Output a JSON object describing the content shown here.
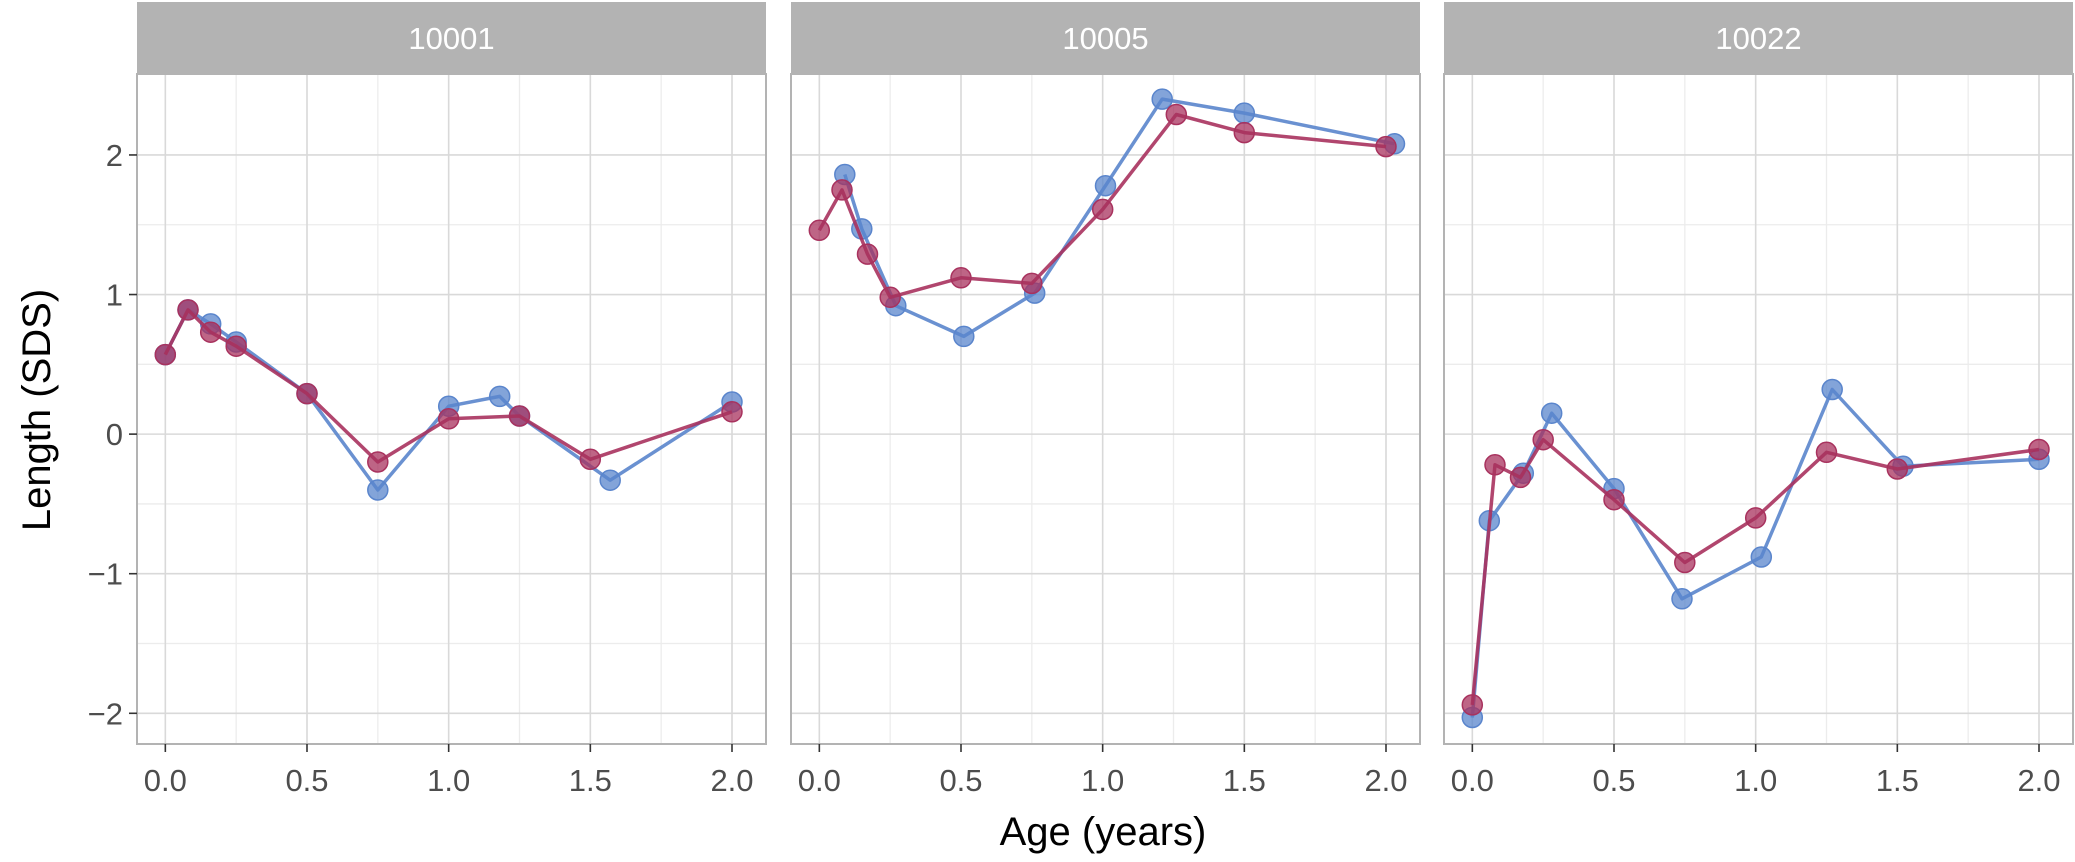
{
  "chart_data": {
    "type": "line",
    "xlabel": "Age (years)",
    "ylabel": "Length (SDS)",
    "xlim": [
      -0.1,
      2.12
    ],
    "ylim": [
      -2.22,
      2.58
    ],
    "x_ticks": [
      0.0,
      0.5,
      1.0,
      1.5,
      2.0
    ],
    "x_tick_labels": [
      "0.0",
      "0.5",
      "1.0",
      "1.5",
      "2.0"
    ],
    "y_ticks": [
      -2,
      -1,
      0,
      1,
      2
    ],
    "y_tick_labels": [
      "−2",
      "−1",
      "0",
      "1",
      "2"
    ],
    "grid": true,
    "colors": {
      "series_a": "#5a85cc",
      "series_b": "#a8325e",
      "strip": "#b3b3b3",
      "grid": "#d9d9d9",
      "panel_border": "#b3b3b3"
    },
    "panels": [
      {
        "title": "10001",
        "series": [
          {
            "color": "#5a85cc",
            "points": [
              [
                0.0,
                0.57
              ],
              [
                0.08,
                0.89
              ],
              [
                0.16,
                0.79
              ],
              [
                0.25,
                0.66
              ],
              [
                0.5,
                0.29
              ],
              [
                0.75,
                -0.4
              ],
              [
                1.0,
                0.2
              ],
              [
                1.18,
                0.27
              ],
              [
                1.25,
                0.13
              ],
              [
                1.57,
                -0.33
              ],
              [
                2.0,
                0.23
              ]
            ]
          },
          {
            "color": "#a8325e",
            "points": [
              [
                0.0,
                0.57
              ],
              [
                0.08,
                0.89
              ],
              [
                0.16,
                0.73
              ],
              [
                0.25,
                0.63
              ],
              [
                0.5,
                0.29
              ],
              [
                0.75,
                -0.2
              ],
              [
                1.0,
                0.11
              ],
              [
                1.25,
                0.13
              ],
              [
                1.5,
                -0.18
              ],
              [
                2.0,
                0.16
              ]
            ]
          }
        ]
      },
      {
        "title": "10005",
        "series": [
          {
            "color": "#5a85cc",
            "points": [
              [
                0.09,
                1.86
              ],
              [
                0.15,
                1.47
              ],
              [
                0.27,
                0.92
              ],
              [
                0.51,
                0.7
              ],
              [
                0.76,
                1.01
              ],
              [
                1.01,
                1.78
              ],
              [
                1.21,
                2.4
              ],
              [
                1.5,
                2.3
              ],
              [
                2.03,
                2.08
              ]
            ]
          },
          {
            "color": "#a8325e",
            "points": [
              [
                0.0,
                1.46
              ],
              [
                0.08,
                1.75
              ],
              [
                0.17,
                1.29
              ],
              [
                0.25,
                0.98
              ],
              [
                0.5,
                1.12
              ],
              [
                0.75,
                1.08
              ],
              [
                1.0,
                1.61
              ],
              [
                1.26,
                2.29
              ],
              [
                1.5,
                2.16
              ],
              [
                2.0,
                2.06
              ]
            ]
          }
        ]
      },
      {
        "title": "10022",
        "series": [
          {
            "color": "#5a85cc",
            "points": [
              [
                0.0,
                -2.03
              ],
              [
                0.06,
                -0.62
              ],
              [
                0.18,
                -0.28
              ],
              [
                0.28,
                0.15
              ],
              [
                0.5,
                -0.39
              ],
              [
                0.74,
                -1.18
              ],
              [
                1.02,
                -0.88
              ],
              [
                1.27,
                0.32
              ],
              [
                1.52,
                -0.23
              ],
              [
                2.0,
                -0.18
              ]
            ]
          },
          {
            "color": "#a8325e",
            "points": [
              [
                0.0,
                -1.94
              ],
              [
                0.08,
                -0.22
              ],
              [
                0.17,
                -0.31
              ],
              [
                0.25,
                -0.04
              ],
              [
                0.5,
                -0.47
              ],
              [
                0.75,
                -0.92
              ],
              [
                1.0,
                -0.6
              ],
              [
                1.25,
                -0.13
              ],
              [
                1.5,
                -0.25
              ],
              [
                2.0,
                -0.11
              ]
            ]
          }
        ]
      }
    ]
  }
}
